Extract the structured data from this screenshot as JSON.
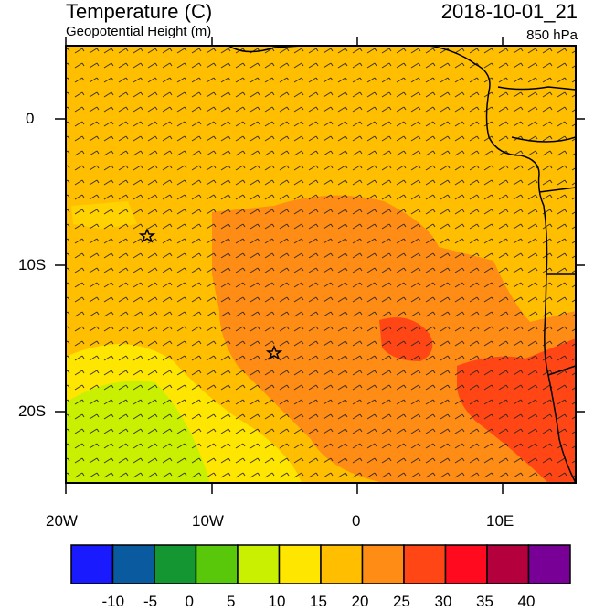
{
  "header": {
    "title": "Temperature (C)",
    "subtitle": "Geopotential Height (m)",
    "valid_time": "2018-10-01_21",
    "level": "850 hPa"
  },
  "axes": {
    "x_labels": [
      "20W",
      "10W",
      "0",
      "10E"
    ],
    "y_labels": [
      "0",
      "10S",
      "20S"
    ],
    "lon_range": [
      -20,
      15
    ],
    "lat_range": [
      -25,
      5
    ]
  },
  "colorbar": {
    "labels": [
      "-10",
      "-5",
      "0",
      "5",
      "10",
      "15",
      "20",
      "25",
      "30",
      "35",
      "40"
    ],
    "colors": [
      "#1a1aff",
      "#0a5aa0",
      "#149632",
      "#5ac80a",
      "#c8f000",
      "#ffe600",
      "#ffbe00",
      "#ff8c14",
      "#ff4614",
      "#ff0a1e",
      "#b4003c",
      "#780096"
    ]
  },
  "markers": [
    {
      "name": "star-marker-north",
      "lon": -14.3,
      "lat": -8
    },
    {
      "name": "star-marker-south",
      "lon": -5.6,
      "lat": -16
    }
  ]
}
